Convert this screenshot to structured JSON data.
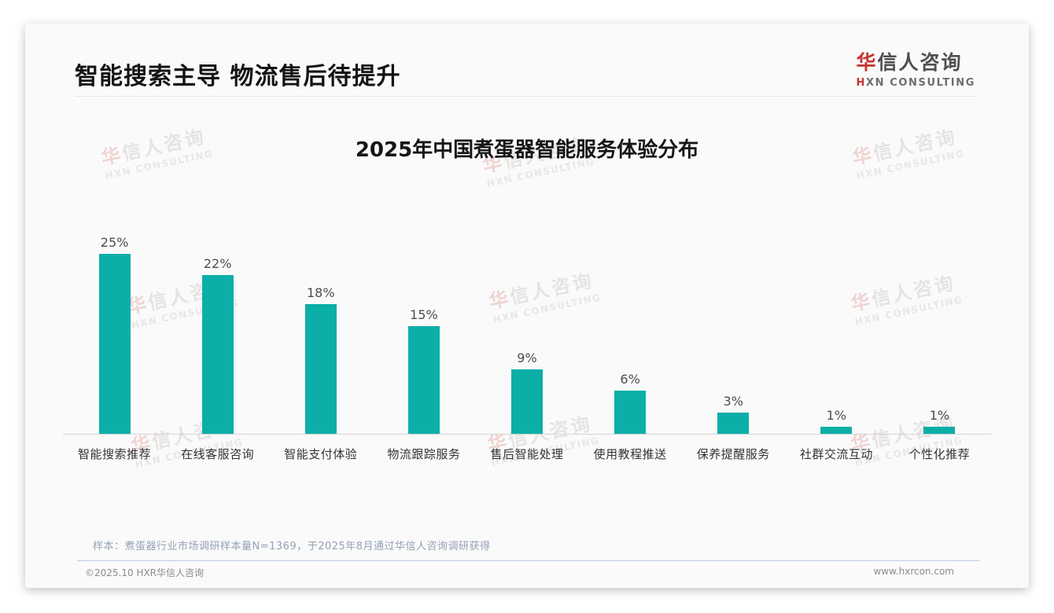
{
  "header": {
    "title": "智能搜索主导 物流售后待提升"
  },
  "logo": {
    "cn_first": "华",
    "cn_rest": "信人咨询",
    "en_first": "H",
    "en_rest": "XN CONSULTING"
  },
  "watermark": {
    "cn_first": "华",
    "cn_rest": "信人咨询",
    "en": "HXN CONSULTING"
  },
  "chart_data": {
    "type": "bar",
    "title": "2025年中国煮蛋器智能服务体验分布",
    "categories": [
      "智能搜索推荐",
      "在线客服咨询",
      "智能支付体验",
      "物流跟踪服务",
      "售后智能处理",
      "使用教程推送",
      "保养提醒服务",
      "社群交流互动",
      "个性化推荐"
    ],
    "values": [
      25,
      22,
      18,
      15,
      9,
      6,
      3,
      1,
      1
    ],
    "unit": "%",
    "xlabel": "",
    "ylabel": "",
    "ylim": [
      0,
      27
    ],
    "grid": false,
    "legend": false,
    "bar_color": "#0bafa8"
  },
  "note": "样本：煮蛋器行业市场调研样本量N=1369，于2025年8月通过华信人咨询调研获得",
  "footer": {
    "copyright": "©2025.10 HXR华信人咨询",
    "website": "www.hxrcon.com"
  },
  "colors": {
    "accent_teal": "#0bafa8",
    "accent_red": "#c43431",
    "card_background": "#fafafa",
    "axis_line": "#d4d4d4",
    "note_text": "#95a1b5",
    "footer_divider": "#bfcde0"
  }
}
